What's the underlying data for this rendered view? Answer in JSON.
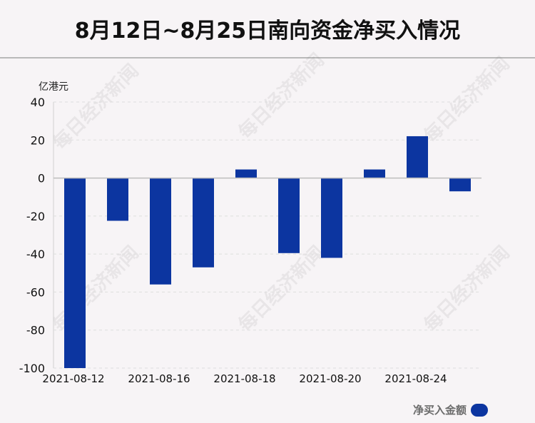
{
  "title": "8月12日~8月25日南向资金净买入情况",
  "watermark": "每日经济新闻",
  "colors": {
    "bar": "#0c35a0",
    "legend": "#0c35a0"
  },
  "chart_data": {
    "type": "bar",
    "unit_label": "亿港元",
    "categories": [
      "2021-08-12",
      "2021-08-13",
      "2021-08-16",
      "2021-08-17",
      "2021-08-18",
      "2021-08-19",
      "2021-08-20",
      "2021-08-23",
      "2021-08-24",
      "2021-08-25"
    ],
    "x_tick_labels": [
      "2021-08-12",
      "2021-08-16",
      "2021-08-18",
      "2021-08-20",
      "2021-08-24"
    ],
    "series": [
      {
        "name": "净买入金额",
        "values": [
          -100,
          -22.5,
          -56,
          -47,
          4.5,
          -39.5,
          -42,
          4.5,
          22,
          -7
        ]
      }
    ],
    "ylim": [
      -100,
      40
    ],
    "yticks": [
      "40",
      "20",
      "0",
      "-20",
      "-40",
      "-60",
      "-80",
      "-100"
    ],
    "grid": true,
    "legend_position": "bottom-right"
  }
}
